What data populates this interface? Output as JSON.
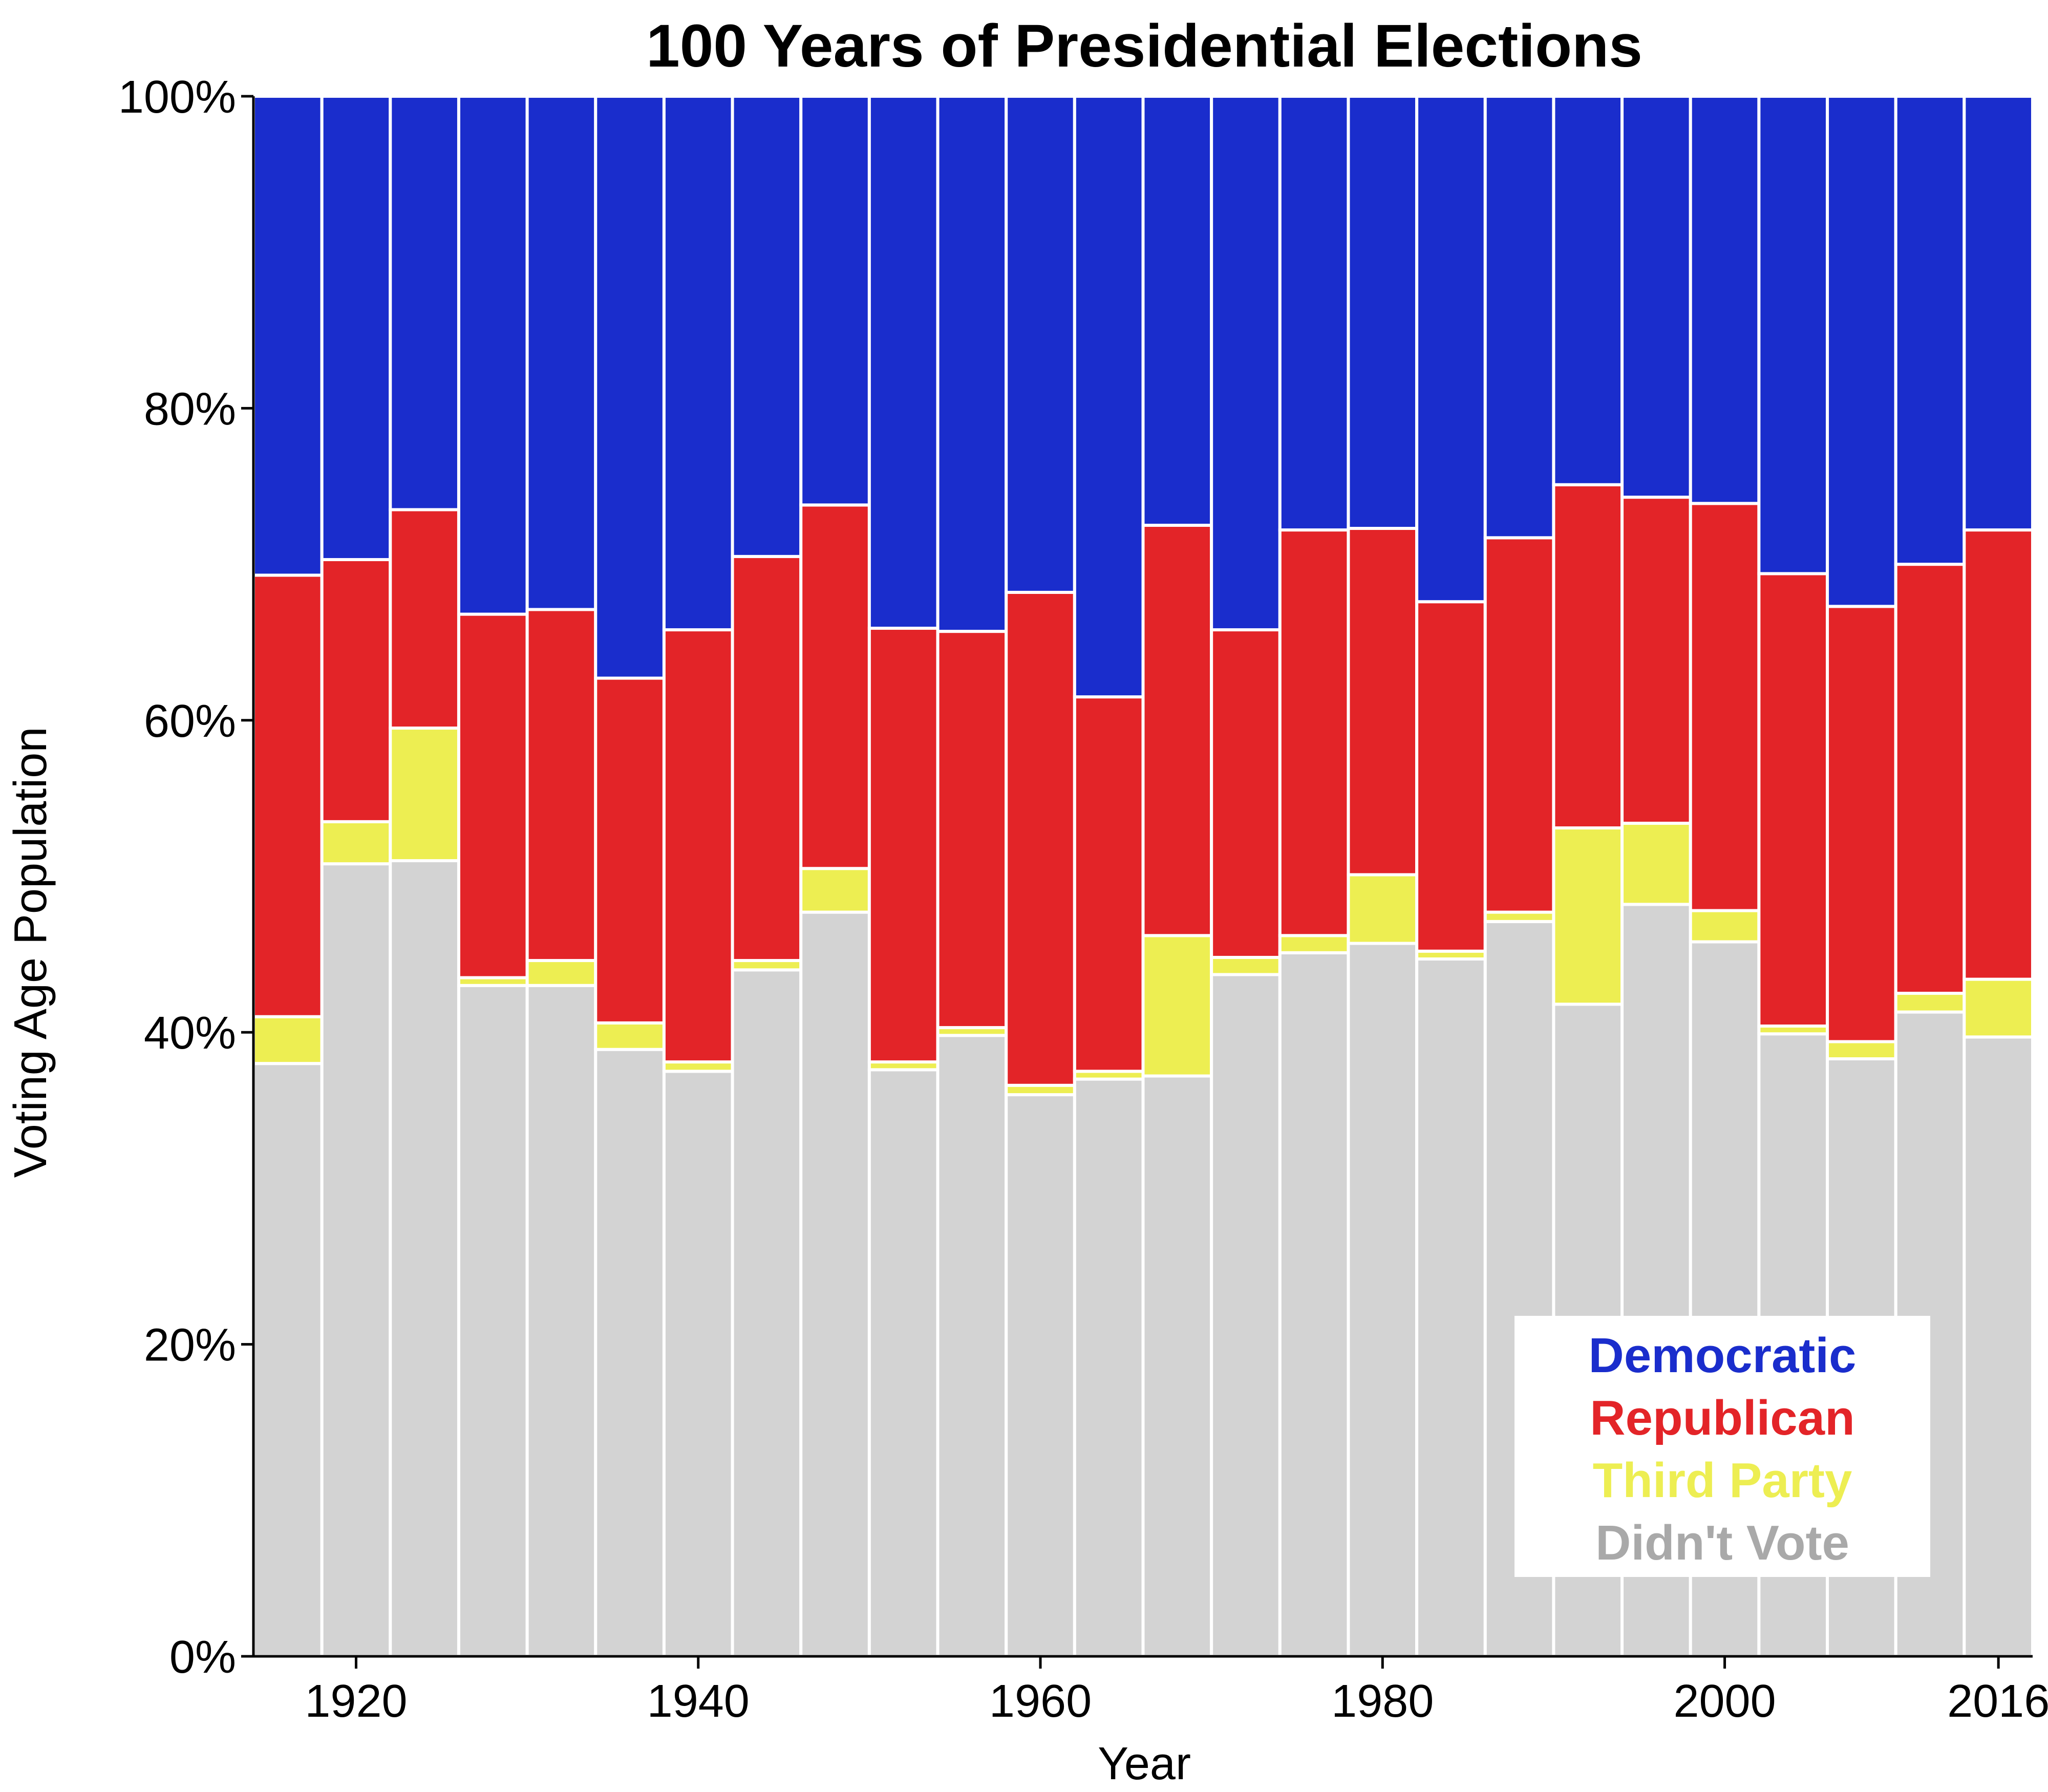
{
  "chart_data": {
    "type": "bar",
    "stacked": true,
    "normalized": true,
    "title": "100 Years of Presidential Elections",
    "xlabel": "Year",
    "ylabel": "Voting Age Population",
    "ylim": [
      0,
      100
    ],
    "y_ticks": [
      "0%",
      "20%",
      "40%",
      "60%",
      "80%",
      "100%"
    ],
    "x_ticks": [
      {
        "year": 1920,
        "label": "1920"
      },
      {
        "year": 1940,
        "label": "1940"
      },
      {
        "year": 1960,
        "label": "1960"
      },
      {
        "year": 1980,
        "label": "1980"
      },
      {
        "year": 2000,
        "label": "2000"
      },
      {
        "year": 2016,
        "label": "2016"
      }
    ],
    "categories": [
      1916,
      1920,
      1924,
      1928,
      1932,
      1936,
      1940,
      1944,
      1948,
      1952,
      1956,
      1960,
      1964,
      1968,
      1972,
      1976,
      1980,
      1984,
      1988,
      1992,
      1996,
      2000,
      2004,
      2008,
      2012,
      2016
    ],
    "grid": false,
    "legend_position": "bottom-right",
    "series": [
      {
        "name": "Didn't Vote",
        "color": "#D3D3D3",
        "values": [
          38.0,
          50.8,
          51.0,
          43.0,
          43.0,
          38.9,
          37.5,
          44.0,
          47.7,
          37.6,
          39.8,
          36.0,
          37.0,
          37.2,
          43.7,
          45.1,
          45.7,
          44.7,
          47.1,
          41.8,
          48.2,
          45.8,
          39.9,
          38.3,
          41.3,
          39.7
        ]
      },
      {
        "name": "Third Party",
        "color": "#EDEE52",
        "values": [
          3.0,
          2.7,
          8.5,
          0.5,
          1.6,
          1.7,
          0.6,
          0.6,
          2.8,
          0.5,
          0.5,
          0.6,
          0.5,
          9.0,
          1.1,
          1.1,
          4.4,
          0.5,
          0.6,
          11.3,
          5.2,
          2.0,
          0.5,
          1.1,
          1.2,
          3.7
        ]
      },
      {
        "name": "Republican",
        "color": "#E32428",
        "values": [
          28.3,
          16.8,
          14.0,
          23.3,
          22.5,
          22.1,
          27.7,
          25.9,
          23.3,
          27.8,
          25.4,
          31.6,
          24.0,
          26.3,
          21.0,
          26.0,
          22.2,
          22.4,
          24.0,
          22.0,
          20.9,
          26.1,
          29.0,
          27.9,
          27.5,
          28.8
        ]
      },
      {
        "name": "Democratic",
        "color": "#1A2DCC",
        "values": [
          30.7,
          29.7,
          26.5,
          33.2,
          32.9,
          37.3,
          34.2,
          29.5,
          26.2,
          34.1,
          34.3,
          31.8,
          38.5,
          27.5,
          34.2,
          27.8,
          27.7,
          32.4,
          28.3,
          24.9,
          25.7,
          26.1,
          30.6,
          32.7,
          30.0,
          27.8
        ]
      }
    ],
    "legend_order": [
      "Democratic",
      "Republican",
      "Third Party"
    ],
    "legend_extra": {
      "name": "Didn't Vote",
      "color": "#A9A9A9"
    }
  }
}
